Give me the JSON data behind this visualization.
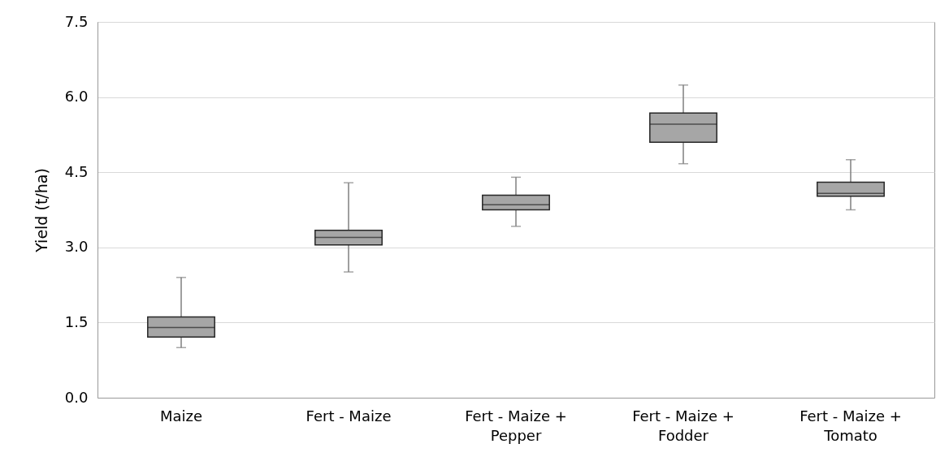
{
  "chart_data": {
    "type": "box",
    "ylabel": "Yield (t/ha)",
    "categories": [
      "Maize",
      "Fert - Maize",
      "Fert - Maize + Pepper",
      "Fert - Maize + Fodder",
      "Fert - Maize + Tomato"
    ],
    "boxes": [
      {
        "low": 1.0,
        "q1": 1.21,
        "median": 1.4,
        "q3": 1.61,
        "high": 2.4
      },
      {
        "low": 2.51,
        "q1": 3.05,
        "median": 3.2,
        "q3": 3.34,
        "high": 4.29
      },
      {
        "low": 3.42,
        "q1": 3.75,
        "median": 3.85,
        "q3": 4.04,
        "high": 4.4
      },
      {
        "low": 4.67,
        "q1": 5.1,
        "median": 5.46,
        "q3": 5.68,
        "high": 6.24
      },
      {
        "low": 3.75,
        "q1": 4.02,
        "median": 4.08,
        "q3": 4.3,
        "high": 4.75
      }
    ],
    "color": "#a6a6a6",
    "ylim": [
      0,
      7.5
    ],
    "yticks": [
      {
        "value": 0,
        "label": "0.0"
      },
      1.5,
      {
        "value": 3,
        "label": "3.0"
      },
      4.5,
      {
        "value": 6,
        "label": "6.0"
      },
      7.5
    ],
    "grid": "y"
  }
}
